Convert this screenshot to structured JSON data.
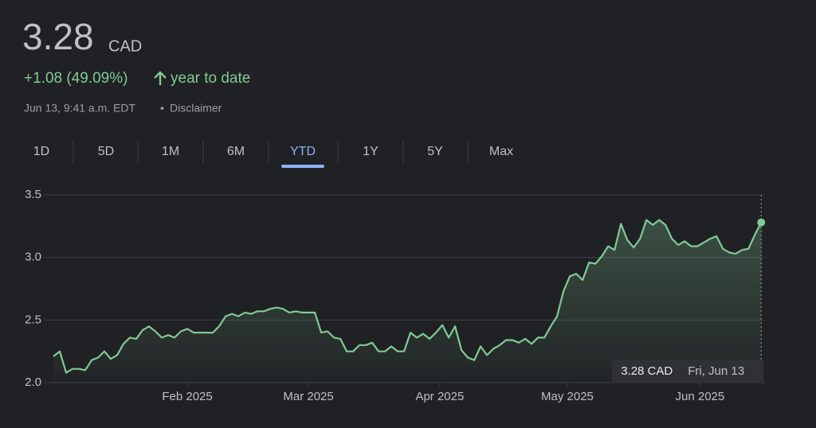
{
  "price": "3.28",
  "currency": "CAD",
  "change": "+1.08 (49.09%)",
  "period": "year to date",
  "timestamp": "Jun 13, 9:41 a.m. EDT",
  "separator": "•",
  "disclaimer": "Disclaimer",
  "ranges": [
    "1D",
    "5D",
    "1M",
    "6M",
    "YTD",
    "1Y",
    "5Y",
    "Max"
  ],
  "selected_range": 4,
  "tooltip": {
    "price": "3.28 CAD",
    "date": "Fri, Jun 13"
  },
  "chart_data": {
    "type": "line",
    "color": "#81c995",
    "values": [
      2.21,
      2.25,
      2.08,
      2.11,
      2.11,
      2.1,
      2.18,
      2.2,
      2.25,
      2.19,
      2.22,
      2.31,
      2.36,
      2.35,
      2.42,
      2.45,
      2.41,
      2.36,
      2.38,
      2.36,
      2.41,
      2.43,
      2.4,
      2.4,
      2.4,
      2.4,
      2.45,
      2.53,
      2.55,
      2.53,
      2.56,
      2.55,
      2.57,
      2.57,
      2.59,
      2.6,
      2.59,
      2.56,
      2.57,
      2.56,
      2.56,
      2.56,
      2.4,
      2.41,
      2.36,
      2.35,
      2.25,
      2.25,
      2.3,
      2.3,
      2.32,
      2.25,
      2.25,
      2.29,
      2.25,
      2.25,
      2.4,
      2.36,
      2.39,
      2.35,
      2.4,
      2.46,
      2.36,
      2.45,
      2.26,
      2.2,
      2.18,
      2.29,
      2.22,
      2.27,
      2.3,
      2.34,
      2.34,
      2.32,
      2.35,
      2.31,
      2.36,
      2.36,
      2.45,
      2.53,
      2.73,
      2.85,
      2.87,
      2.82,
      2.96,
      2.95,
      3.01,
      3.09,
      3.06,
      3.27,
      3.14,
      3.08,
      3.15,
      3.3,
      3.26,
      3.3,
      3.26,
      3.15,
      3.1,
      3.13,
      3.09,
      3.09,
      3.12,
      3.15,
      3.17,
      3.07,
      3.04,
      3.03,
      3.06,
      3.07,
      3.18,
      3.28
    ],
    "xlim": [
      -1.5,
      111.6
    ],
    "xticks": [
      {
        "value": 21,
        "label": "Feb 2025"
      },
      {
        "value": 40,
        "label": "Mar 2025"
      },
      {
        "value": 60.6,
        "label": "Apr 2025"
      },
      {
        "value": 80.6,
        "label": "May 2025"
      },
      {
        "value": 101.4,
        "label": "Jun 2025"
      }
    ],
    "ylim": [
      2.0,
      3.5
    ],
    "yticks": [
      {
        "value": 2,
        "label": "2.0"
      },
      2.5,
      {
        "value": 3,
        "label": "3.0"
      },
      3.5
    ],
    "grid": true
  }
}
